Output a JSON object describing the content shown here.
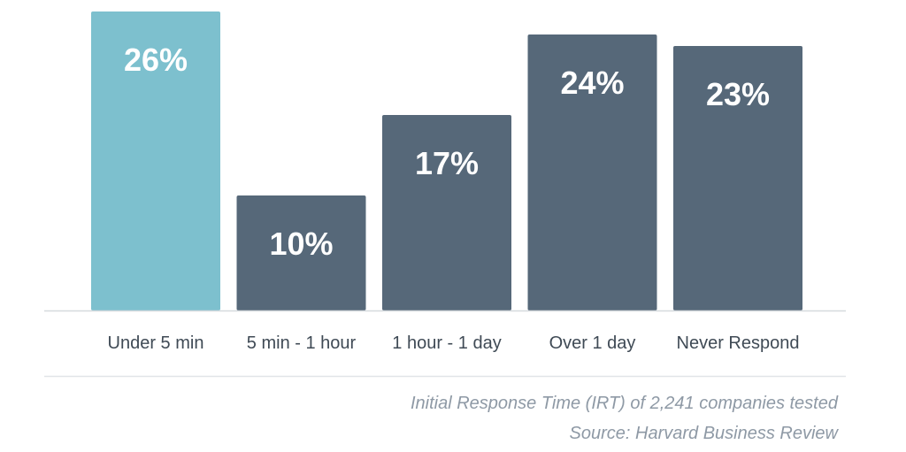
{
  "chart_data": {
    "type": "bar",
    "categories": [
      "Under 5 min",
      "5 min - 1 hour",
      "1 hour - 1 day",
      "Over 1 day",
      "Never Respond"
    ],
    "values": [
      26,
      10,
      17,
      24,
      23
    ],
    "value_labels": [
      "26%",
      "10%",
      "17%",
      "24%",
      "23%"
    ],
    "ylim": [
      0,
      26
    ],
    "grid": false,
    "highlight_index": 0,
    "colors": {
      "highlight": "#7dc0ce",
      "default": "#566879",
      "axis_line": "#d6dade",
      "separator": "#e1e4e8",
      "value_text": "#ffffff",
      "tick_text": "#3f4a55",
      "footnote_text": "#8e99a5"
    },
    "footnotes": [
      "Initial Response Time (IRT) of 2,241 companies tested",
      "Source: Harvard Business Review"
    ]
  }
}
